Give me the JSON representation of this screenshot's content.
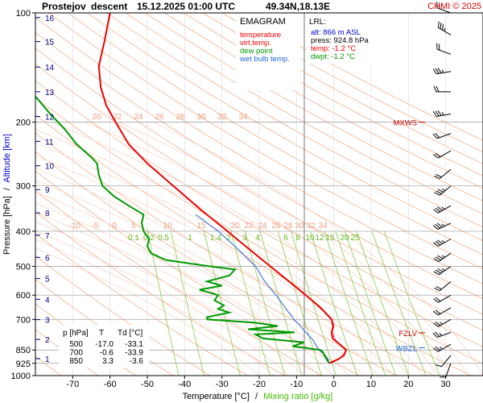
{
  "header": {
    "station": "Prostejov",
    "mode": "descent",
    "datetime": "15.12.2025 01:00 UTC",
    "location": "49.34N,18.13E",
    "copyright": "CHMI © 2025"
  },
  "legend": {
    "title": "EMAGRAM",
    "items": [
      {
        "label": "temperature",
        "color": "#ee0000"
      },
      {
        "label": "virt.temp.",
        "color": "#ee0000"
      },
      {
        "label": "dew point",
        "color": "#009900"
      },
      {
        "label": "wet bulb temp.",
        "color": "#2266dd"
      }
    ]
  },
  "lrl": {
    "title": "LRL:",
    "alt": "alt: 866 m ASL",
    "press": "press: 924.8 hPa",
    "temp": "temp: -1.2 °C",
    "dwpt": "dwpt: -1.2 °C"
  },
  "levels_box": {
    "header": [
      "p [hPa]",
      "T",
      "Td [°C]"
    ],
    "rows": [
      [
        "500",
        "-17.0",
        "-33.1"
      ],
      [
        "700",
        "-0.6",
        "-33.9"
      ],
      [
        "850",
        "3.3",
        "-3.6"
      ]
    ]
  },
  "axes": {
    "ylabel": "Pressure [hPa]",
    "ylabel_sep": "/",
    "ylabel2": "Altitude [km]",
    "xlabel": "Temperature [°C]",
    "xlabel_sep": "/",
    "xlabel2": "Mixing ratio [g/kg]"
  },
  "markers": [
    {
      "label": "MXWS",
      "p": 200,
      "color": "#cc0000"
    },
    {
      "label": "FZLV",
      "p": 762,
      "color": "#cc0000"
    },
    {
      "label": "WBZL",
      "p": 838,
      "color": "#2266dd"
    }
  ],
  "chart_data": {
    "type": "line",
    "y_scale": "log",
    "x_range": [
      -80,
      40
    ],
    "p_range": [
      1000,
      100
    ],
    "x_ticks": [
      -70,
      -60,
      -50,
      -40,
      -30,
      -20,
      -10,
      0,
      10,
      20,
      30
    ],
    "p_ticks": [
      100,
      200,
      300,
      400,
      500,
      600,
      700,
      850,
      925,
      1000
    ],
    "alt_ticks": [
      "1",
      "2",
      "3",
      "4",
      "5",
      "6",
      "7",
      "8",
      "9",
      "10",
      "11",
      "12",
      "13",
      "14",
      "15",
      "16"
    ],
    "dry_adiabat_labels": [
      "20",
      "22",
      "24",
      "26",
      "28",
      "30",
      "32",
      "34"
    ],
    "moist_adiabat_labels": [
      "-10",
      "-5",
      "0",
      "5",
      "10",
      "15",
      "20",
      "22",
      "24",
      "26",
      "28",
      "30",
      "32",
      "34"
    ],
    "mixing_ratio_labels": [
      "0.1",
      "0.2",
      "0.5",
      "1",
      "1.4",
      "2",
      "3",
      "4",
      "6",
      "8",
      "10",
      "12",
      "15",
      "20",
      "25"
    ],
    "series": [
      {
        "name": "temperature",
        "color": "#ee0000",
        "points": [
          [
            924.8,
            -1.2
          ],
          [
            900,
            1.3
          ],
          [
            880,
            2.7
          ],
          [
            850,
            3.3
          ],
          [
            820,
            1.6
          ],
          [
            790,
            -0.3
          ],
          [
            760,
            -0.6
          ],
          [
            730,
            -0.1
          ],
          [
            700,
            -0.6
          ],
          [
            650,
            -3.5
          ],
          [
            600,
            -7.5
          ],
          [
            550,
            -12
          ],
          [
            500,
            -17
          ],
          [
            450,
            -22.5
          ],
          [
            400,
            -28.5
          ],
          [
            350,
            -35.5
          ],
          [
            300,
            -43
          ],
          [
            260,
            -50
          ],
          [
            230,
            -55
          ],
          [
            200,
            -58.5
          ],
          [
            180,
            -61
          ],
          [
            160,
            -62.5
          ],
          [
            140,
            -63
          ],
          [
            120,
            -61.5
          ],
          [
            100,
            -60
          ]
        ]
      },
      {
        "name": "wet bulb temp.",
        "color": "#2266dd",
        "points": [
          [
            924.8,
            -1.2
          ],
          [
            900,
            -1.6
          ],
          [
            880,
            -2.3
          ],
          [
            850,
            -4
          ],
          [
            800,
            -5.5
          ],
          [
            760,
            -7.5
          ],
          [
            720,
            -9.5
          ],
          [
            700,
            -10.7
          ],
          [
            650,
            -13
          ],
          [
            600,
            -15.5
          ],
          [
            550,
            -18.5
          ],
          [
            500,
            -21
          ],
          [
            450,
            -25.5
          ],
          [
            400,
            -31
          ],
          [
            360,
            -37
          ]
        ]
      },
      {
        "name": "dew point",
        "color": "#009900",
        "points": [
          [
            924.8,
            -1.2
          ],
          [
            900,
            -2
          ],
          [
            880,
            -2.5
          ],
          [
            860,
            -3
          ],
          [
            850,
            -3.6
          ],
          [
            830,
            -11
          ],
          [
            810,
            -8
          ],
          [
            790,
            -19
          ],
          [
            770,
            -21
          ],
          [
            760,
            -10.5
          ],
          [
            745,
            -23
          ],
          [
            730,
            -15
          ],
          [
            715,
            -21
          ],
          [
            700,
            -33.9
          ],
          [
            690,
            -34
          ],
          [
            670,
            -28
          ],
          [
            655,
            -31
          ],
          [
            640,
            -29.5
          ],
          [
            620,
            -32
          ],
          [
            600,
            -31
          ],
          [
            580,
            -36
          ],
          [
            565,
            -30
          ],
          [
            550,
            -34
          ],
          [
            530,
            -28
          ],
          [
            510,
            -26.5
          ],
          [
            500,
            -33.1
          ],
          [
            480,
            -45
          ],
          [
            460,
            -49
          ],
          [
            440,
            -50
          ],
          [
            420,
            -49.5
          ],
          [
            400,
            -51
          ],
          [
            380,
            -51.5
          ],
          [
            360,
            -51
          ],
          [
            340,
            -55
          ],
          [
            320,
            -59
          ],
          [
            300,
            -62
          ],
          [
            280,
            -63
          ],
          [
            260,
            -63.5
          ],
          [
            250,
            -65
          ],
          [
            230,
            -69
          ],
          [
            210,
            -72
          ],
          [
            190,
            -76
          ],
          [
            170,
            -80
          ],
          [
            155,
            -82
          ]
        ]
      },
      {
        "name": "virt.temp.",
        "color": "#ee0000",
        "points": [
          [
            924.8,
            -1.0
          ],
          [
            900,
            1.5
          ],
          [
            850,
            3.5
          ],
          [
            800,
            0.5
          ],
          [
            760,
            -0.4
          ],
          [
            700,
            -0.5
          ],
          [
            600,
            -7.4
          ],
          [
            500,
            -17
          ],
          [
            400,
            -28.5
          ],
          [
            350,
            -35.5
          ]
        ]
      }
    ],
    "wind_barbs": [
      {
        "p": 100,
        "dir": 290,
        "speed": 20
      },
      {
        "p": 115,
        "dir": 300,
        "speed": 25
      },
      {
        "p": 130,
        "dir": 290,
        "speed": 20
      },
      {
        "p": 145,
        "dir": 260,
        "speed": 25
      },
      {
        "p": 165,
        "dir": 270,
        "speed": 20
      },
      {
        "p": 190,
        "dir": 260,
        "speed": 25
      },
      {
        "p": 215,
        "dir": 250,
        "speed": 20
      },
      {
        "p": 240,
        "dir": 240,
        "speed": 20
      },
      {
        "p": 270,
        "dir": 230,
        "speed": 20
      },
      {
        "p": 300,
        "dir": 230,
        "speed": 25
      },
      {
        "p": 340,
        "dir": 240,
        "speed": 25
      },
      {
        "p": 380,
        "dir": 245,
        "speed": 25
      },
      {
        "p": 420,
        "dir": 240,
        "speed": 25
      },
      {
        "p": 460,
        "dir": 235,
        "speed": 25
      },
      {
        "p": 500,
        "dir": 235,
        "speed": 25
      },
      {
        "p": 550,
        "dir": 230,
        "speed": 20
      },
      {
        "p": 600,
        "dir": 240,
        "speed": 20
      },
      {
        "p": 650,
        "dir": 240,
        "speed": 20
      },
      {
        "p": 700,
        "dir": 240,
        "speed": 15
      },
      {
        "p": 760,
        "dir": 250,
        "speed": 15
      },
      {
        "p": 820,
        "dir": 240,
        "speed": 15
      },
      {
        "p": 880,
        "dir": 220,
        "speed": 10
      },
      {
        "p": 924.8,
        "dir": 200,
        "speed": 10
      }
    ]
  }
}
